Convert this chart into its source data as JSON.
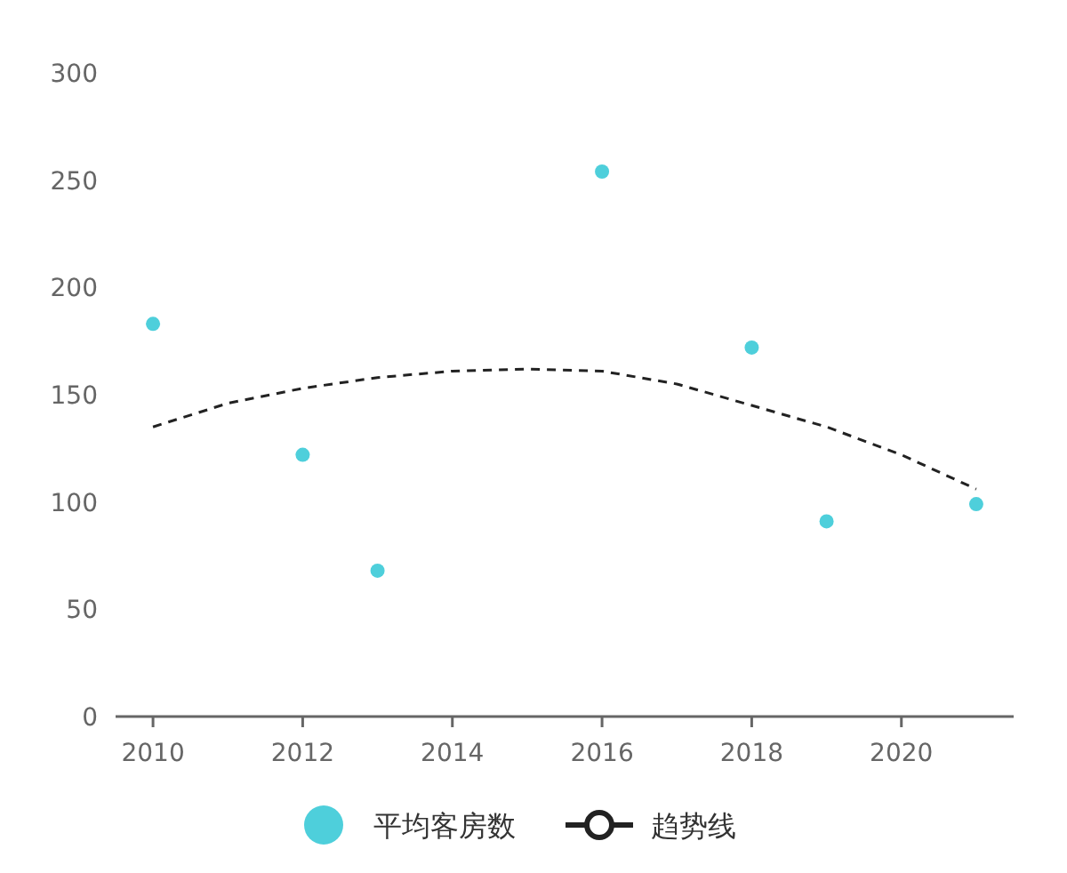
{
  "chart_data": {
    "type": "scatter",
    "xlim": [
      2009.5,
      2021.5
    ],
    "ylim": [
      0,
      300
    ],
    "xticks": [
      2010,
      2012,
      2014,
      2016,
      2018,
      2020
    ],
    "yticks": [
      0,
      50,
      100,
      150,
      200,
      250,
      300
    ],
    "grid": false,
    "legend": "bottom",
    "series": [
      {
        "name": "平均客房数",
        "color": "#4ecfdb",
        "marker": "circle",
        "x": [
          2010,
          2012,
          2013,
          2016,
          2018,
          2019,
          2021
        ],
        "values": [
          183,
          122,
          68,
          254,
          172,
          91,
          99
        ]
      },
      {
        "name": "趋势线",
        "type": "line",
        "color": "#222222",
        "line_style": "dashed",
        "marker": "none",
        "x": [
          2010,
          2011,
          2012,
          2013,
          2014,
          2015,
          2016,
          2017,
          2018,
          2019,
          2020,
          2021
        ],
        "values": [
          135,
          146,
          153,
          158,
          161,
          162,
          161,
          155,
          145,
          135,
          122,
          106
        ]
      }
    ]
  }
}
